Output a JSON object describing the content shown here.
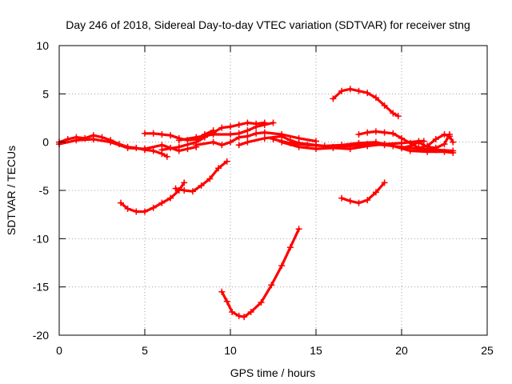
{
  "chart_data": {
    "type": "scatter",
    "title": "Day 246 of 2018, Sidereal Day-to-day VTEC variation (SDTVAR) for receiver stng",
    "xlabel": "GPS time / hours",
    "ylabel": "SDTVAR / TECUs",
    "xlim": [
      0,
      25
    ],
    "ylim": [
      -20,
      10
    ],
    "x_ticks": [
      0,
      5,
      10,
      15,
      20,
      25
    ],
    "y_ticks": [
      -20,
      -15,
      -10,
      -5,
      0,
      5,
      10
    ],
    "grid": true,
    "color": "#ff0000",
    "series": [
      {
        "name": "s1",
        "points": [
          [
            0,
            0
          ],
          [
            0.5,
            0.3
          ],
          [
            1,
            0.5
          ],
          [
            1.5,
            0.4
          ],
          [
            2,
            0.7
          ],
          [
            2.5,
            0.5
          ],
          [
            3,
            0.2
          ],
          [
            3.5,
            -0.2
          ],
          [
            4,
            -0.5
          ],
          [
            4.5,
            -0.6
          ],
          [
            5,
            -0.8
          ],
          [
            5.5,
            -0.9
          ],
          [
            6,
            -1.2
          ],
          [
            6.3,
            -1.5
          ]
        ]
      },
      {
        "name": "s2",
        "points": [
          [
            0,
            -0.2
          ],
          [
            1,
            0.2
          ],
          [
            2,
            0.3
          ],
          [
            3,
            0
          ],
          [
            4,
            -0.6
          ],
          [
            5,
            -0.7
          ],
          [
            6,
            -0.3
          ],
          [
            6.5,
            -0.6
          ],
          [
            7,
            -0.9
          ],
          [
            7.5,
            -0.7
          ],
          [
            8,
            -0.5
          ]
        ]
      },
      {
        "name": "s3",
        "points": [
          [
            5,
            0.9
          ],
          [
            5.5,
            0.9
          ],
          [
            6,
            0.8
          ],
          [
            6.5,
            0.7
          ],
          [
            7,
            0.4
          ],
          [
            7.5,
            0.2
          ],
          [
            8,
            0.3
          ],
          [
            8.5,
            0.8
          ],
          [
            9,
            1.2
          ]
        ]
      },
      {
        "name": "s4",
        "points": [
          [
            6,
            -0.8
          ],
          [
            7,
            -0.5
          ],
          [
            8,
            0
          ],
          [
            8.5,
            0.5
          ],
          [
            9,
            1
          ],
          [
            9.5,
            1.5
          ],
          [
            10,
            1.6
          ],
          [
            10.5,
            1.8
          ],
          [
            11,
            2
          ],
          [
            11.5,
            1.9
          ],
          [
            12,
            2
          ]
        ]
      },
      {
        "name": "s5",
        "points": [
          [
            7,
            0.2
          ],
          [
            8,
            0.5
          ],
          [
            9,
            0.8
          ],
          [
            10,
            0.8
          ],
          [
            10.5,
            0.9
          ],
          [
            11,
            1.2
          ],
          [
            11.5,
            1.6
          ],
          [
            12,
            1.8
          ],
          [
            12.5,
            2
          ]
        ]
      },
      {
        "name": "s6",
        "points": [
          [
            8,
            -0.3
          ],
          [
            9,
            0
          ],
          [
            9.5,
            -0.3
          ],
          [
            10,
            0
          ],
          [
            10.5,
            0.5
          ],
          [
            11,
            0.6
          ],
          [
            11.5,
            0.9
          ],
          [
            12,
            1
          ],
          [
            13,
            0.8
          ],
          [
            14,
            0.4
          ],
          [
            15,
            0.1
          ]
        ]
      },
      {
        "name": "s7",
        "points": [
          [
            10.5,
            -0.3
          ],
          [
            11,
            0
          ],
          [
            12,
            0.4
          ],
          [
            13,
            0.6
          ],
          [
            13.5,
            0.2
          ],
          [
            14,
            -0.1
          ],
          [
            15,
            -0.3
          ],
          [
            16,
            -0.5
          ],
          [
            17,
            -0.4
          ],
          [
            18,
            -0.2
          ],
          [
            19,
            -0.3
          ],
          [
            20,
            -0.5
          ],
          [
            21,
            -0.7
          ],
          [
            22,
            -0.8
          ],
          [
            23,
            -0.9
          ]
        ]
      },
      {
        "name": "s8",
        "points": [
          [
            12.5,
            0.3
          ],
          [
            13.5,
            -0.1
          ],
          [
            14.5,
            -0.3
          ],
          [
            15.5,
            -0.4
          ],
          [
            16.5,
            -0.3
          ],
          [
            17.5,
            -0.1
          ],
          [
            18.5,
            0
          ],
          [
            19.5,
            -0.4
          ],
          [
            20.5,
            -0.9
          ],
          [
            21.5,
            -1
          ],
          [
            22.5,
            -1
          ],
          [
            23,
            -1.1
          ]
        ]
      },
      {
        "name": "s9",
        "points": [
          [
            13,
            0
          ],
          [
            14,
            -0.5
          ],
          [
            15,
            -0.7
          ],
          [
            16,
            -0.6
          ],
          [
            17,
            -0.7
          ],
          [
            18,
            -0.4
          ],
          [
            19,
            -0.2
          ],
          [
            20,
            -0.1
          ],
          [
            21,
            0.1
          ],
          [
            21.3,
            0.1
          ]
        ]
      },
      {
        "name": "s10",
        "points": [
          [
            17.5,
            0.8
          ],
          [
            18,
            1
          ],
          [
            18.5,
            1.1
          ],
          [
            19,
            1
          ],
          [
            19.5,
            0.9
          ],
          [
            20,
            0.4
          ],
          [
            20.5,
            -0.1
          ],
          [
            21,
            -0.6
          ],
          [
            21.5,
            -0.4
          ],
          [
            22,
            0.3
          ],
          [
            22.5,
            0.8
          ],
          [
            22.8,
            0.6
          ],
          [
            23,
            0
          ]
        ]
      },
      {
        "name": "s11",
        "points": [
          [
            20,
            -0.6
          ],
          [
            20.5,
            -0.4
          ],
          [
            21,
            0
          ],
          [
            21.5,
            -0.5
          ],
          [
            22,
            -0.6
          ],
          [
            22.5,
            -0.2
          ],
          [
            22.8,
            0.8
          ]
        ]
      },
      {
        "name": "s12",
        "points": [
          [
            16,
            4.5
          ],
          [
            16.5,
            5.3
          ],
          [
            17,
            5.5
          ],
          [
            17.5,
            5.3
          ],
          [
            18,
            5.1
          ],
          [
            18.5,
            4.6
          ],
          [
            19,
            3.8
          ],
          [
            19.5,
            3
          ],
          [
            19.8,
            2.7
          ]
        ]
      },
      {
        "name": "s13",
        "points": [
          [
            3.6,
            -6.3
          ],
          [
            4,
            -6.9
          ],
          [
            4.5,
            -7.2
          ],
          [
            5,
            -7.2
          ],
          [
            5.5,
            -6.8
          ],
          [
            6,
            -6.3
          ],
          [
            6.5,
            -5.8
          ],
          [
            7,
            -5
          ],
          [
            7.3,
            -4.2
          ]
        ]
      },
      {
        "name": "s14",
        "points": [
          [
            6.8,
            -4.8
          ],
          [
            7.3,
            -5
          ],
          [
            7.8,
            -5.1
          ],
          [
            8.3,
            -4.5
          ],
          [
            8.8,
            -3.8
          ],
          [
            9.3,
            -2.7
          ],
          [
            9.8,
            -2
          ]
        ]
      },
      {
        "name": "s15",
        "points": [
          [
            9.5,
            -15.5
          ],
          [
            9.8,
            -16.5
          ],
          [
            10.1,
            -17.6
          ],
          [
            10.5,
            -18
          ],
          [
            10.8,
            -18.1
          ],
          [
            11.2,
            -17.6
          ],
          [
            11.8,
            -16.6
          ],
          [
            12.4,
            -14.8
          ],
          [
            13,
            -12.8
          ],
          [
            13.5,
            -10.9
          ],
          [
            14,
            -9
          ]
        ]
      },
      {
        "name": "s16",
        "points": [
          [
            16.5,
            -5.8
          ],
          [
            17,
            -6.1
          ],
          [
            17.5,
            -6.3
          ],
          [
            18,
            -6
          ],
          [
            18.5,
            -5.2
          ],
          [
            19,
            -4.2
          ]
        ]
      }
    ]
  }
}
